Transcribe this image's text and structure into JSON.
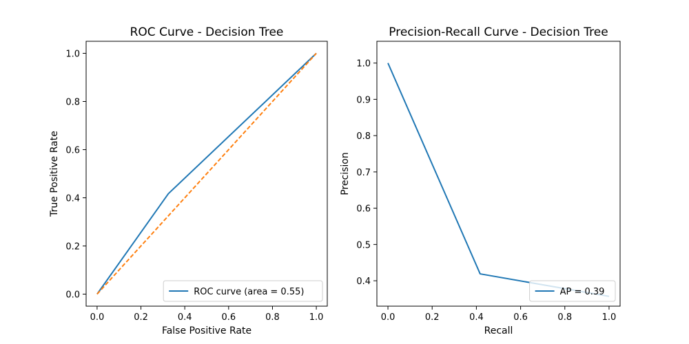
{
  "chart_data": [
    {
      "type": "line",
      "title": "ROC Curve - Decision Tree",
      "xlabel": "False Positive Rate",
      "ylabel": "True Positive Rate",
      "xlim": [
        -0.05,
        1.05
      ],
      "ylim": [
        -0.05,
        1.05
      ],
      "xticks": [
        0.0,
        0.2,
        0.4,
        0.6,
        0.8,
        1.0
      ],
      "yticks": [
        0.0,
        0.2,
        0.4,
        0.6,
        0.8,
        1.0
      ],
      "tick_format": 1,
      "grid": false,
      "legend_position": "lower-right",
      "series": [
        {
          "name": "ROC curve (area = 0.55)",
          "color": "#1f77b4",
          "dash": "solid",
          "in_legend": true,
          "x": [
            0.0,
            0.325,
            1.0
          ],
          "y": [
            0.0,
            0.417,
            1.0
          ]
        },
        {
          "name": "",
          "color": "#ff7f0e",
          "dash": "dashed",
          "in_legend": false,
          "x": [
            0.0,
            1.0
          ],
          "y": [
            0.0,
            1.0
          ]
        }
      ]
    },
    {
      "type": "line",
      "title": "Precision-Recall Curve - Decision Tree",
      "xlabel": "Recall",
      "ylabel": "Precision",
      "xlim": [
        -0.05,
        1.05
      ],
      "ylim": [
        0.33,
        1.06
      ],
      "xticks": [
        0.0,
        0.2,
        0.4,
        0.6,
        0.8,
        1.0
      ],
      "yticks": [
        0.4,
        0.5,
        0.6,
        0.7,
        0.8,
        0.9,
        1.0
      ],
      "tick_format": 1,
      "grid": false,
      "legend_position": "lower-right",
      "series": [
        {
          "name": "AP = 0.39",
          "color": "#1f77b4",
          "dash": "solid",
          "in_legend": true,
          "x": [
            0.0,
            0.417,
            1.0
          ],
          "y": [
            1.0,
            0.419,
            0.357
          ]
        }
      ]
    }
  ]
}
